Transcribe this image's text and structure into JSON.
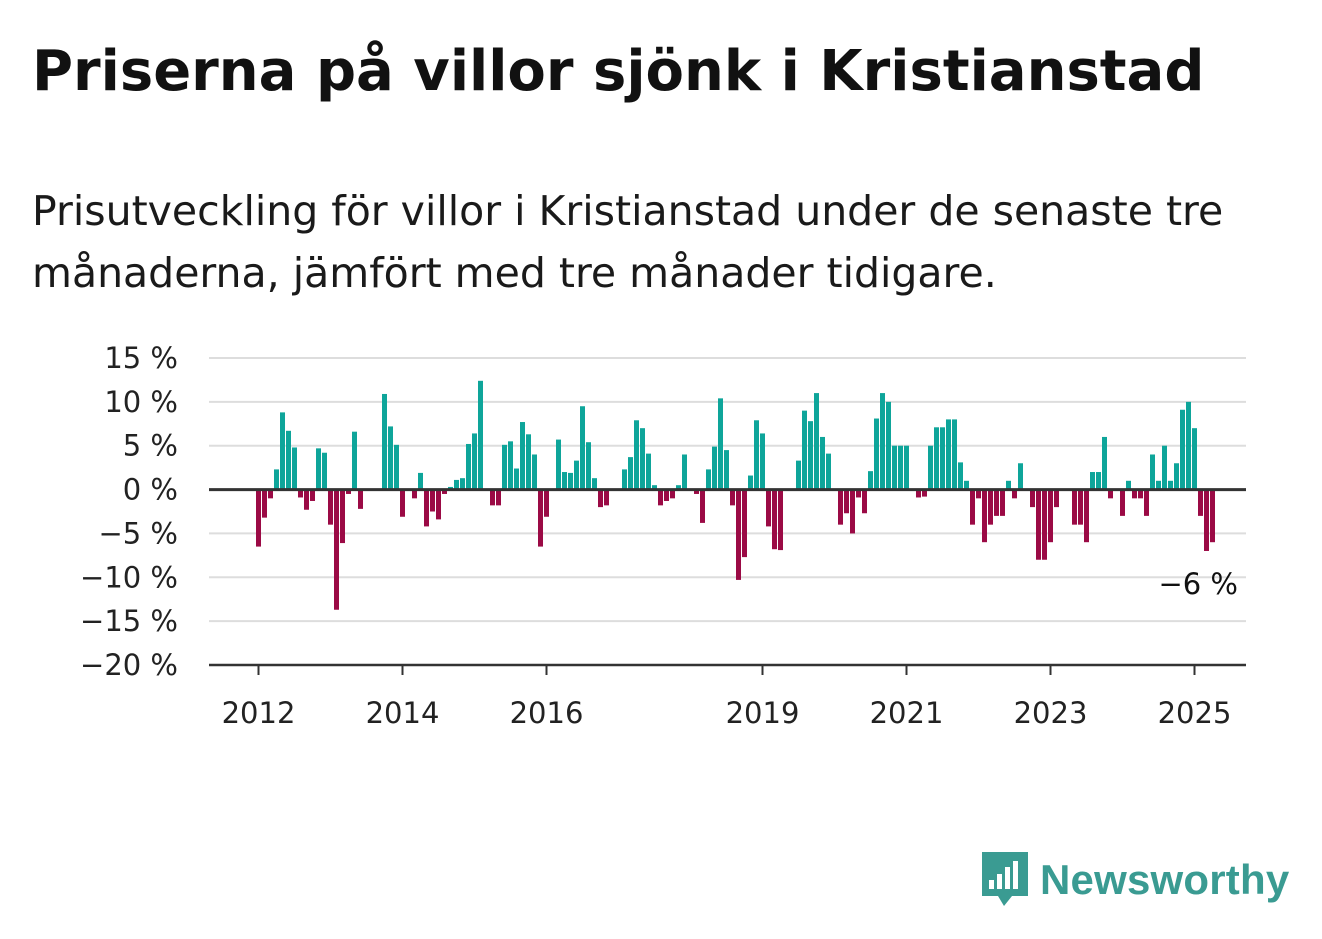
{
  "header": {
    "title": "Priserna på villor sjönk i Kristianstad",
    "subtitle": "Prisutveckling för villor i Kristianstad under de senaste tre månaderna, jämfört med tre månader tidigare."
  },
  "brand": {
    "name": "Newsworthy",
    "color": "#3a9b92"
  },
  "colors": {
    "positive": "#0ea59a",
    "negative": "#9b0a45",
    "grid": "#dddddd",
    "axis": "#333333"
  },
  "chart_data": {
    "type": "bar",
    "title": "Priserna på villor sjönk i Kristianstad",
    "subtitle": "Prisutveckling för villor i Kristianstad under de senaste tre månaderna, jämfört med tre månader tidigare.",
    "xlabel": "",
    "ylabel": "",
    "ylim": [
      -20,
      15
    ],
    "y_ticks": [
      15,
      10,
      5,
      0,
      -5,
      -10,
      -15,
      -20
    ],
    "y_tick_labels": [
      "15 %",
      "10 %",
      "5 %",
      "0 %",
      "−5 %",
      "−10 %",
      "−15 %",
      "−20 %"
    ],
    "x_tick_labels": [
      "2012",
      "2014",
      "2016",
      "2019",
      "2021",
      "2023",
      "2025"
    ],
    "x_tick_values": [
      "2012-01",
      "2014-01",
      "2016-01",
      "2019-01",
      "2021-01",
      "2023-01",
      "2025-01"
    ],
    "x_start": "2012-01",
    "last_value_label": "−6 %",
    "grid": true,
    "legend": "none",
    "values": [
      -6.5,
      -3.2,
      -1,
      2.3,
      8.8,
      6.7,
      4.8,
      -0.9,
      -2.3,
      -1.3,
      4.7,
      4.2,
      -4,
      -13.7,
      -6.1,
      -0.5,
      6.6,
      -2.2,
      0,
      0,
      0,
      10.9,
      7.2,
      5.1,
      -3.1,
      0,
      -1,
      1.9,
      -4.2,
      -2.5,
      -3.4,
      -0.5,
      0.3,
      1.1,
      1.3,
      5.2,
      6.4,
      12.4,
      0,
      -1.8,
      -1.8,
      5.1,
      5.5,
      2.4,
      7.7,
      6.3,
      4.0,
      -6.5,
      -3.1,
      0,
      5.7,
      2.0,
      1.9,
      3.3,
      9.5,
      5.4,
      1.3,
      -2.0,
      -1.8,
      0,
      0,
      2.3,
      3.7,
      7.9,
      7.0,
      4.1,
      0.5,
      -1.8,
      -1.3,
      -1.0,
      0.5,
      4.0,
      0,
      -0.5,
      -3.8,
      2.3,
      4.9,
      10.4,
      4.5,
      -1.8,
      -10.3,
      -7.7,
      1.6,
      7.9,
      6.4,
      -4.2,
      -6.8,
      -6.9,
      0,
      0,
      3.3,
      9.0,
      7.8,
      11.0,
      6.0,
      4.1,
      0,
      -4.0,
      -2.7,
      -5.0,
      -0.9,
      -2.7,
      2.1,
      8.1,
      11.0,
      10.0,
      5.0,
      5.0,
      5.0,
      0,
      -0.9,
      -0.8,
      5.0,
      7.1,
      7.1,
      8.0,
      8.0,
      3.1,
      1.0,
      -4.0,
      -1.0,
      -6.0,
      -4.0,
      -3.0,
      -3.0,
      1.0,
      -1.0,
      3.0,
      0,
      -2.0,
      -8.0,
      -8.0,
      -6.0,
      -2.0,
      0,
      0,
      -4.0,
      -4.0,
      -6.0,
      2.0,
      2.0,
      6.0,
      -1.0,
      0,
      -3.0,
      1.0,
      -1.0,
      -1.0,
      -3.0,
      4.0,
      1.0,
      5.0,
      1.0,
      3.0,
      9.1,
      10.0,
      7.0,
      -3.0,
      -7.0,
      -6.0
    ]
  }
}
